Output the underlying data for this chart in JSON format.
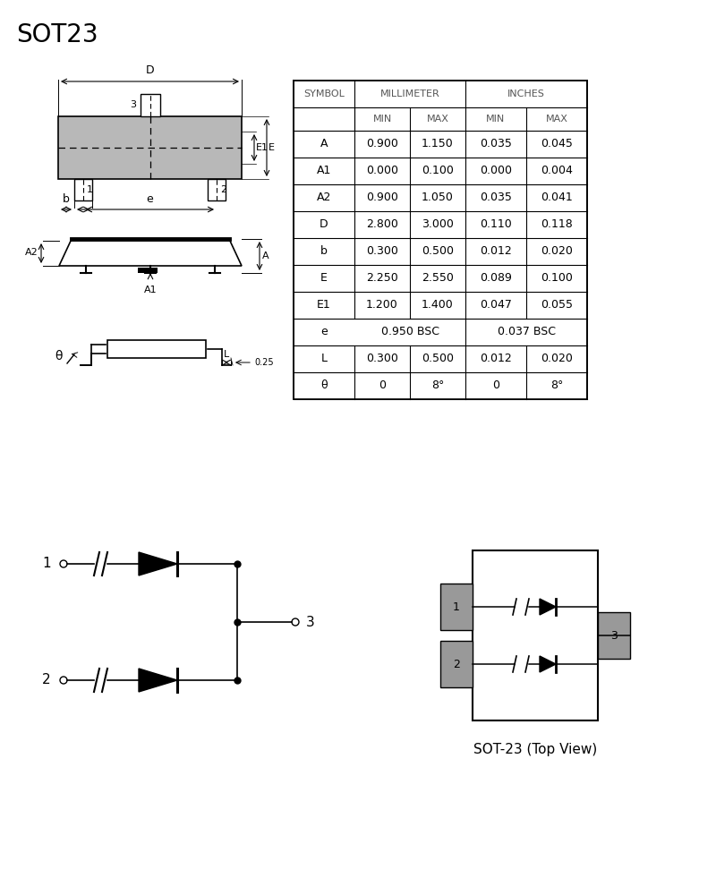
{
  "title": "SOT23",
  "title_fontsize": 20,
  "bg_color": "#ffffff",
  "table_data": [
    [
      "A",
      "0.900",
      "1.150",
      "0.035",
      "0.045"
    ],
    [
      "A1",
      "0.000",
      "0.100",
      "0.000",
      "0.004"
    ],
    [
      "A2",
      "0.900",
      "1.050",
      "0.035",
      "0.041"
    ],
    [
      "D",
      "2.800",
      "3.000",
      "0.110",
      "0.118"
    ],
    [
      "b",
      "0.300",
      "0.500",
      "0.012",
      "0.020"
    ],
    [
      "E",
      "2.250",
      "2.550",
      "0.089",
      "0.100"
    ],
    [
      "E1",
      "1.200",
      "1.400",
      "0.047",
      "0.055"
    ],
    [
      "e",
      "0.950 BSC",
      "",
      "0.037 BSC",
      ""
    ],
    [
      "L",
      "0.300",
      "0.500",
      "0.012",
      "0.020"
    ],
    [
      "θ",
      "0",
      "8°",
      "0",
      "8°"
    ]
  ],
  "line_color": "#000000",
  "gray_fill": "#b8b8b8",
  "mid_gray": "#999999",
  "text_gray": "#555555"
}
